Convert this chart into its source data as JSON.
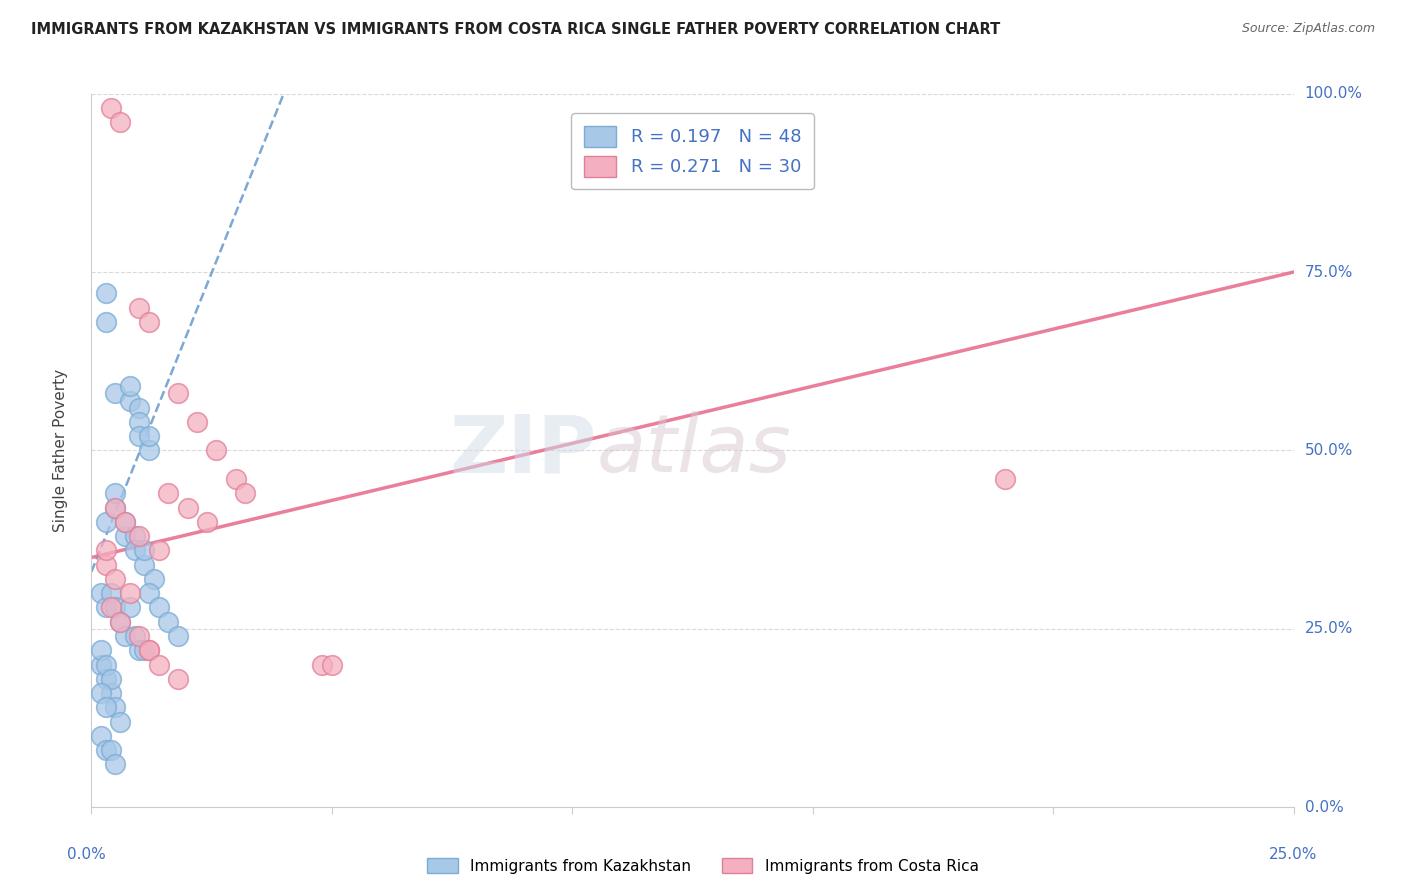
{
  "title": "IMMIGRANTS FROM KAZAKHSTAN VS IMMIGRANTS FROM COSTA RICA SINGLE FATHER POVERTY CORRELATION CHART",
  "source": "Source: ZipAtlas.com",
  "ylabel": "Single Father Poverty",
  "legend_r1": "R = 0.197",
  "legend_n1": "N = 48",
  "legend_r2": "R = 0.271",
  "legend_n2": "N = 30",
  "legend_label1": "Immigrants from Kazakhstan",
  "legend_label2": "Immigrants from Costa Rica",
  "watermark_zip": "ZIP",
  "watermark_atlas": "atlas",
  "kazakhstan_color": "#a8c8e8",
  "kazakhstan_edge": "#7aacd4",
  "costa_rica_color": "#f4b0c0",
  "costa_rica_edge": "#e08098",
  "trend_kaz_color": "#6699cc",
  "trend_cr_color": "#e87090",
  "background_color": "#ffffff",
  "grid_color": "#d0d0d0",
  "right_label_color": "#4472c4",
  "title_color": "#222222",
  "xlim": [
    0.0,
    25.0
  ],
  "ylim": [
    0.0,
    100.0
  ],
  "x_ticks": [
    0,
    5,
    10,
    15,
    20,
    25
  ],
  "y_ticks": [
    0,
    25,
    50,
    75,
    100
  ],
  "kaz_x": [
    0.3,
    0.3,
    0.5,
    0.8,
    0.8,
    1.0,
    1.0,
    1.0,
    1.2,
    1.2,
    0.3,
    0.5,
    0.5,
    0.7,
    0.7,
    0.9,
    0.9,
    1.1,
    1.1,
    1.3,
    0.2,
    0.3,
    0.4,
    0.5,
    0.6,
    0.7,
    0.8,
    0.9,
    1.0,
    1.1,
    0.2,
    0.3,
    0.4,
    0.5,
    0.6,
    0.2,
    0.3,
    0.4,
    0.2,
    0.3,
    0.2,
    0.3,
    0.4,
    0.5,
    1.2,
    1.4,
    1.6,
    1.8
  ],
  "kaz_y": [
    68.0,
    72.0,
    58.0,
    57.0,
    59.0,
    56.0,
    54.0,
    52.0,
    50.0,
    52.0,
    40.0,
    42.0,
    44.0,
    38.0,
    40.0,
    38.0,
    36.0,
    34.0,
    36.0,
    32.0,
    30.0,
    28.0,
    30.0,
    28.0,
    26.0,
    24.0,
    28.0,
    24.0,
    22.0,
    22.0,
    20.0,
    18.0,
    16.0,
    14.0,
    12.0,
    22.0,
    20.0,
    18.0,
    16.0,
    14.0,
    10.0,
    8.0,
    8.0,
    6.0,
    30.0,
    28.0,
    26.0,
    24.0
  ],
  "cr_x": [
    0.4,
    0.6,
    1.0,
    1.2,
    1.8,
    2.2,
    2.6,
    3.0,
    3.2,
    0.5,
    0.7,
    1.0,
    1.4,
    1.6,
    2.0,
    2.4,
    0.3,
    0.5,
    0.8,
    1.2,
    4.8,
    5.0,
    0.4,
    0.6,
    1.0,
    1.2,
    1.4,
    1.8,
    0.3,
    19.0
  ],
  "cr_y": [
    98.0,
    96.0,
    70.0,
    68.0,
    58.0,
    54.0,
    50.0,
    46.0,
    44.0,
    42.0,
    40.0,
    38.0,
    36.0,
    44.0,
    42.0,
    40.0,
    34.0,
    32.0,
    30.0,
    22.0,
    20.0,
    20.0,
    28.0,
    26.0,
    24.0,
    22.0,
    20.0,
    18.0,
    36.0,
    46.0
  ]
}
